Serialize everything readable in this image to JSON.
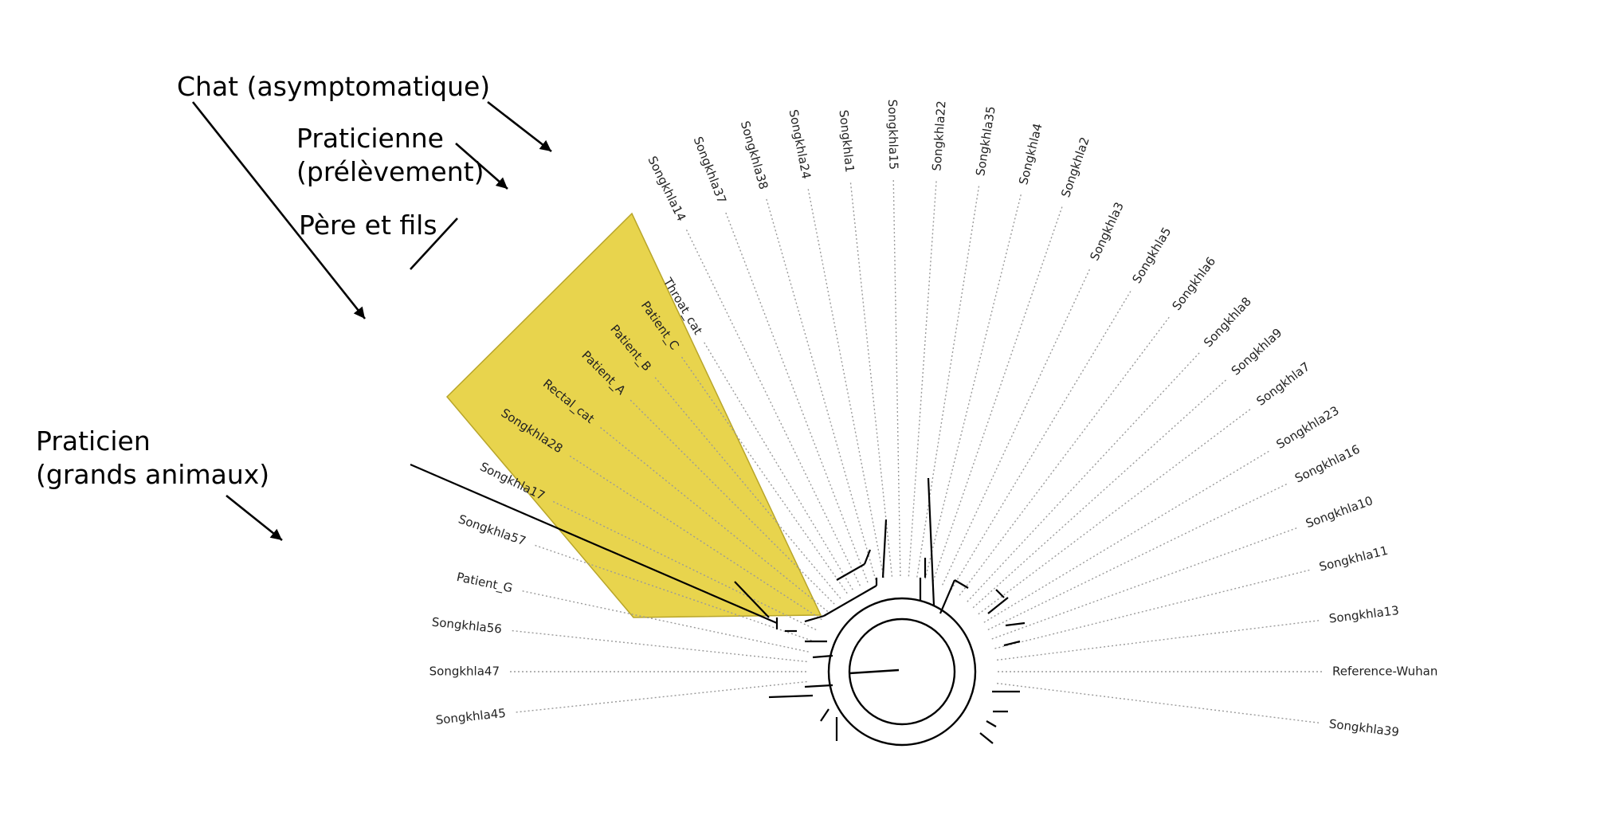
{
  "annotations": {
    "cat": "Chat (asymptomatique)",
    "practitioner_f_line1": "Praticienne",
    "practitioner_f_line2": "(prélèvement)",
    "father_son": "Père et fils",
    "practitioner_m_line1": "Praticien",
    "practitioner_m_line2": "(grands animaux)"
  },
  "highlight_color": "#e8d44d",
  "tree": {
    "left_tips": [
      "Songkhla45",
      "Songkhla47",
      "Songkhla56",
      "Patient_G",
      "Songkhla57",
      "Songkhla17",
      "Songkhla28",
      "Rectal_cat",
      "Patient_A",
      "Patient_B",
      "Patient_C",
      "Throat_cat"
    ],
    "top_tips": [
      "Songkhla14",
      "Songkhla37",
      "Songkhla38",
      "Songkhla24",
      "Songkhla1",
      "Songkhla15",
      "Songkhla22",
      "Songkhla35",
      "Songkhla4",
      "Songkhla2"
    ],
    "right_tips": [
      "Songkhla3",
      "Songkhla5",
      "Songkhla6",
      "Songkhla8",
      "Songkhla9",
      "Songkhla7",
      "Songkhla23",
      "Songkhla16",
      "Songkhla10",
      "Songkhla11",
      "Songkhla13",
      "Reference-Wuhan",
      "Songkhla39"
    ]
  }
}
